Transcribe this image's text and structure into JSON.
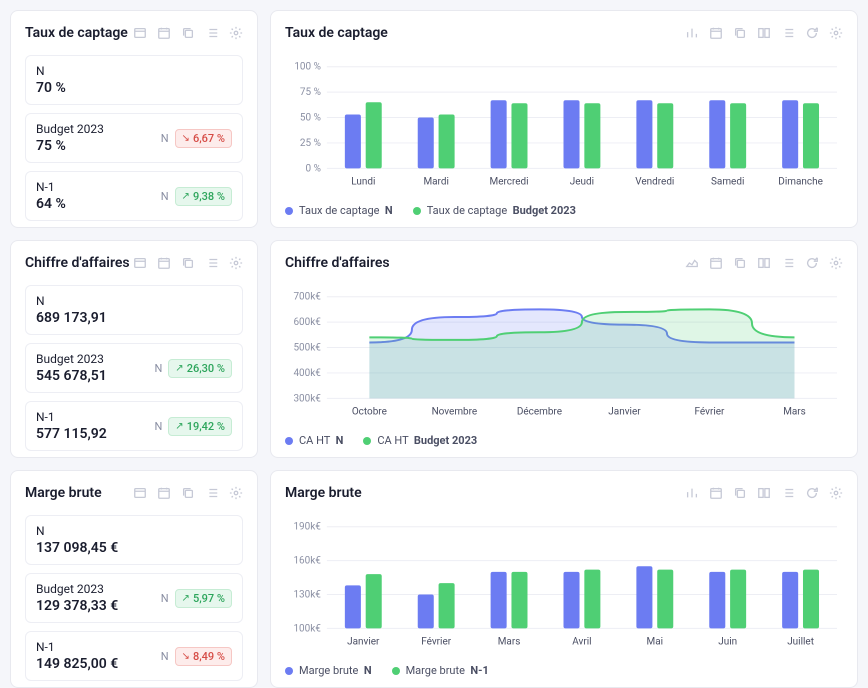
{
  "colors": {
    "series1": "#6c7cf2",
    "series2": "#4fcf74",
    "grid": "#edeef4",
    "bg": "#ffffff",
    "text": "#1a1d2e",
    "muted": "#8a8fa3"
  },
  "panels": {
    "captage": {
      "title": "Taux de captage",
      "metrics": {
        "n": {
          "label": "N",
          "value": "70 %"
        },
        "budget": {
          "label": "Budget 2023",
          "value": "75 %",
          "compare": "N",
          "delta": "6,67 %",
          "dir": "down"
        },
        "n1": {
          "label": "N-1",
          "value": "64 %",
          "compare": "N",
          "delta": "9,38 %",
          "dir": "up"
        }
      },
      "chart": {
        "type": "bar",
        "ylabel_suffix": " %",
        "ylim": [
          0,
          100
        ],
        "ytick_step": 25,
        "categories": [
          "Lundi",
          "Mardi",
          "Mercredi",
          "Jeudi",
          "Vendredi",
          "Samedi",
          "Dimanche"
        ],
        "series": [
          {
            "name": "Taux de captage",
            "suffix": "N",
            "color": "#6c7cf2",
            "values": [
              53,
              50,
              67,
              67,
              67,
              67,
              67
            ]
          },
          {
            "name": "Taux de captage",
            "suffix": "Budget 2023",
            "color": "#4fcf74",
            "values": [
              65,
              53,
              64,
              64,
              64,
              64,
              64
            ]
          }
        ]
      }
    },
    "ca": {
      "title": "Chiffre d'affaires",
      "metrics": {
        "n": {
          "label": "N",
          "value": "689 173,91"
        },
        "budget": {
          "label": "Budget 2023",
          "value": "545 678,51",
          "compare": "N",
          "delta": "26,30 %",
          "dir": "up"
        },
        "n1": {
          "label": "N-1",
          "value": "577 115,92",
          "compare": "N",
          "delta": "19,42 %",
          "dir": "up"
        }
      },
      "chart": {
        "type": "area",
        "ylabel_suffix": "k€",
        "ylim": [
          300,
          700
        ],
        "ytick_step": 100,
        "categories": [
          "Octobre",
          "Novembre",
          "Décembre",
          "Janvier",
          "Février",
          "Mars"
        ],
        "series": [
          {
            "name": "CA HT",
            "suffix": "N",
            "color": "#6c7cf2",
            "values": [
              520,
              620,
              650,
              590,
              520,
              520
            ]
          },
          {
            "name": "CA HT",
            "suffix": "Budget 2023",
            "color": "#4fcf74",
            "values": [
              540,
              530,
              560,
              640,
              650,
              540
            ]
          }
        ]
      }
    },
    "marge": {
      "title": "Marge brute",
      "metrics": {
        "n": {
          "label": "N",
          "value": "137 098,45 €"
        },
        "budget": {
          "label": "Budget 2023",
          "value": "129 378,33 €",
          "compare": "N",
          "delta": "5,97 %",
          "dir": "up"
        },
        "n1": {
          "label": "N-1",
          "value": "149 825,00 €",
          "compare": "N",
          "delta": "8,49 %",
          "dir": "down"
        }
      },
      "chart": {
        "type": "bar",
        "ylabel_suffix": "k€",
        "ylim": [
          100,
          190
        ],
        "ytick_step": 30,
        "categories": [
          "Janvier",
          "Février",
          "Mars",
          "Avril",
          "Mai",
          "Juin",
          "Juillet"
        ],
        "series": [
          {
            "name": "Marge brute",
            "suffix": "N",
            "color": "#6c7cf2",
            "values": [
              138,
              130,
              150,
              150,
              155,
              150,
              150
            ]
          },
          {
            "name": "Marge brute",
            "suffix": "N-1",
            "color": "#4fcf74",
            "values": [
              148,
              140,
              150,
              152,
              152,
              152,
              152
            ]
          }
        ]
      }
    }
  }
}
